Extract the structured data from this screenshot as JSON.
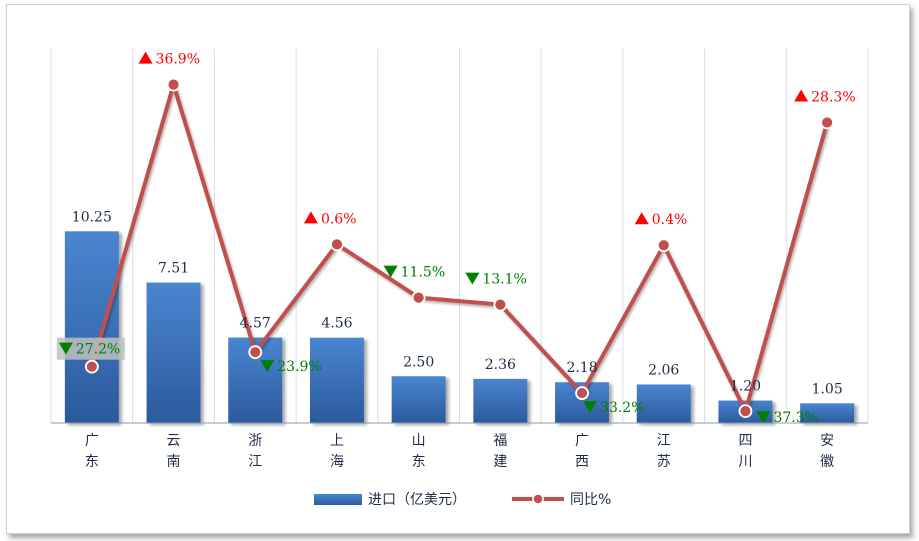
{
  "chart_data": {
    "type": "bar+line",
    "categories": [
      [
        "广",
        "东"
      ],
      [
        "云",
        "南"
      ],
      [
        "浙",
        "江"
      ],
      [
        "上",
        "海"
      ],
      [
        "山",
        "东"
      ],
      [
        "福",
        "建"
      ],
      [
        "广",
        "西"
      ],
      [
        "江",
        "苏"
      ],
      [
        "四",
        "川"
      ],
      [
        "安",
        "徽"
      ]
    ],
    "series": [
      {
        "name": "进口（亿美元）",
        "type": "bar",
        "axis": "left",
        "values": [
          10.25,
          7.51,
          4.57,
          4.56,
          2.5,
          2.36,
          2.18,
          2.06,
          1.2,
          1.05
        ],
        "labels": [
          "10.25",
          "7.51",
          "4.57",
          "4.56",
          "2.50",
          "2.36",
          "2.18",
          "2.06",
          "1.20",
          "1.05"
        ],
        "color": "#3a6fb8"
      },
      {
        "name": "同比%",
        "type": "line",
        "axis": "right",
        "values": [
          -27.2,
          36.9,
          -23.9,
          0.6,
          -11.5,
          -13.1,
          -33.2,
          0.4,
          -37.3,
          28.3
        ],
        "labels": [
          "27.2%",
          "36.9%",
          "23.9%",
          "0.6%",
          "11.5%",
          "13.1%",
          "33.2%",
          "0.4%",
          "37.3%",
          "28.3%"
        ],
        "color": "#c0504d"
      }
    ],
    "ylim_left": [
      0,
      20
    ],
    "ylim_right": [
      -40,
      45
    ],
    "up_color": "#ff0000",
    "down_color": "#008000",
    "legend_position": "bottom",
    "grid": "vertical"
  }
}
